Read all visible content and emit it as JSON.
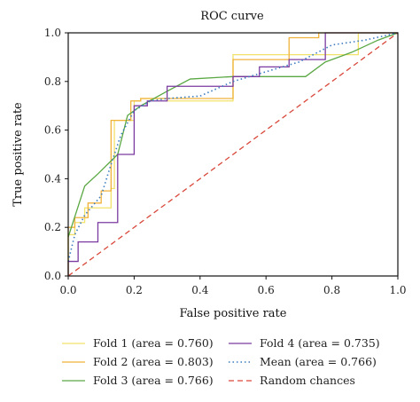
{
  "chart_data": {
    "type": "line",
    "title": "ROC curve",
    "xlabel": "False positive rate",
    "ylabel": "True positive rate",
    "xlim": [
      0,
      1
    ],
    "ylim": [
      0,
      1
    ],
    "xticks": [
      "0.0",
      "0.2",
      "0.4",
      "0.6",
      "0.8",
      "1.0"
    ],
    "yticks": [
      "0.0",
      "0.2",
      "0.4",
      "0.6",
      "0.8",
      "1.0"
    ],
    "grid": false,
    "legend_position": "bottom",
    "series": [
      {
        "name": "Fold 1 (area = 0.760)",
        "color": "#f2e16a",
        "dash": "solid",
        "x": [
          0.0,
          0.0,
          0.02,
          0.02,
          0.05,
          0.05,
          0.13,
          0.13,
          0.14,
          0.14,
          0.2,
          0.2,
          0.22,
          0.22,
          0.3,
          0.3,
          0.5,
          0.5,
          0.84,
          0.84,
          0.88,
          0.88,
          1.0
        ],
        "y": [
          0.0,
          0.17,
          0.17,
          0.22,
          0.22,
          0.28,
          0.28,
          0.36,
          0.36,
          0.64,
          0.64,
          0.72,
          0.72,
          0.73,
          0.73,
          0.72,
          0.72,
          0.91,
          0.91,
          0.91,
          0.91,
          1.0,
          1.0
        ]
      },
      {
        "name": "Fold 2 (area = 0.803)",
        "color": "#f0b23a",
        "dash": "solid",
        "x": [
          0.0,
          0.0,
          0.02,
          0.02,
          0.06,
          0.06,
          0.1,
          0.1,
          0.13,
          0.13,
          0.19,
          0.19,
          0.22,
          0.22,
          0.5,
          0.5,
          0.67,
          0.67,
          0.76,
          0.76,
          1.0
        ],
        "y": [
          0.0,
          0.2,
          0.2,
          0.24,
          0.24,
          0.3,
          0.3,
          0.35,
          0.35,
          0.64,
          0.64,
          0.72,
          0.72,
          0.73,
          0.73,
          0.89,
          0.89,
          0.98,
          0.98,
          1.0,
          1.0
        ]
      },
      {
        "name": "Fold 3 (area = 0.766)",
        "color": "#5aa844",
        "dash": "solid",
        "x": [
          0.0,
          0.0,
          0.05,
          0.05,
          0.09,
          0.09,
          0.15,
          0.15,
          0.18,
          0.18,
          0.22,
          0.22,
          0.3,
          0.3,
          0.37,
          0.37,
          0.5,
          0.5,
          0.72,
          0.72,
          0.78,
          0.78,
          0.86,
          0.86,
          0.94,
          0.94,
          1.0
        ],
        "y": [
          0.16,
          0.16,
          0.37,
          0.37,
          0.42,
          0.42,
          0.5,
          0.5,
          0.66,
          0.66,
          0.7,
          0.7,
          0.76,
          0.76,
          0.81,
          0.81,
          0.82,
          0.82,
          0.82,
          0.82,
          0.88,
          0.88,
          0.92,
          0.92,
          0.97,
          0.97,
          1.0
        ]
      },
      {
        "name": "Fold 4 (area = 0.735)",
        "color": "#7b3aa0",
        "dash": "solid",
        "x": [
          0.0,
          0.0,
          0.03,
          0.03,
          0.09,
          0.09,
          0.15,
          0.15,
          0.2,
          0.2,
          0.24,
          0.24,
          0.3,
          0.3,
          0.5,
          0.5,
          0.58,
          0.58,
          0.67,
          0.67,
          0.78,
          0.78,
          1.0
        ],
        "y": [
          0.0,
          0.06,
          0.06,
          0.14,
          0.14,
          0.22,
          0.22,
          0.5,
          0.5,
          0.7,
          0.7,
          0.72,
          0.72,
          0.78,
          0.78,
          0.82,
          0.82,
          0.86,
          0.86,
          0.89,
          0.89,
          1.0,
          1.0
        ]
      },
      {
        "name": "Mean (area = 0.766)",
        "color": "#3a7bbf",
        "dash": "dotted",
        "x": [
          0.0,
          0.02,
          0.05,
          0.1,
          0.13,
          0.16,
          0.2,
          0.25,
          0.3,
          0.4,
          0.5,
          0.6,
          0.7,
          0.8,
          0.9,
          1.0
        ],
        "y": [
          0.06,
          0.17,
          0.25,
          0.33,
          0.46,
          0.58,
          0.68,
          0.72,
          0.73,
          0.74,
          0.8,
          0.84,
          0.88,
          0.95,
          0.97,
          1.0
        ]
      },
      {
        "name": "Random chances",
        "color": "#d9483b",
        "dash": "dashed",
        "x": [
          0.0,
          1.0
        ],
        "y": [
          0.0,
          1.0
        ]
      }
    ]
  }
}
